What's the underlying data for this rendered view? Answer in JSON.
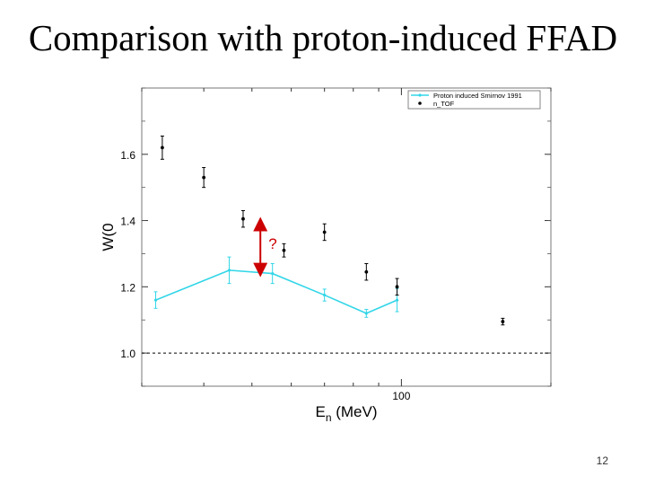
{
  "slide": {
    "title": "Comparison with proton-induced FFAD",
    "page_number": "12"
  },
  "colors": {
    "proton_series": "#33d6e8",
    "ntof_series": "#000000",
    "arrow": "#cc0000",
    "reference_line": "#000000"
  },
  "chart_data": {
    "type": "scatter",
    "x_scale": "log",
    "xlim": [
      30,
      200
    ],
    "ylim": [
      0.9,
      1.8
    ],
    "xlabel_main": "E",
    "xlabel_sub": "n",
    "xlabel_unit": " (MeV)",
    "ylabel": "W(0",
    "x_ticks": [
      {
        "value": 100,
        "label": "100"
      }
    ],
    "y_ticks": [
      {
        "value": 1.0,
        "label": "1.0"
      },
      {
        "value": 1.2,
        "label": "1.2"
      },
      {
        "value": 1.4,
        "label": "1.4"
      },
      {
        "value": 1.6,
        "label": "1.6"
      }
    ],
    "reference_y": 1.0,
    "legend": {
      "position": "top-right",
      "entries": [
        {
          "label": "Proton induced Smirnov 1991",
          "style": "line-marker"
        },
        {
          "label": "n_TOF",
          "style": "dot"
        }
      ]
    },
    "series": [
      {
        "name": "Proton induced Smirnov 1991",
        "style": "line",
        "points": [
          {
            "x": 32,
            "y": 1.16,
            "err": 0.025
          },
          {
            "x": 45,
            "y": 1.25,
            "err": 0.04
          },
          {
            "x": 55,
            "y": 1.24,
            "err": 0.03
          },
          {
            "x": 70,
            "y": 1.175,
            "err": 0.018
          },
          {
            "x": 85,
            "y": 1.12,
            "err": 0.012
          },
          {
            "x": 98,
            "y": 1.16,
            "err": 0.035
          }
        ]
      },
      {
        "name": "n_TOF",
        "style": "dot",
        "points": [
          {
            "x": 33,
            "y": 1.62,
            "err": 0.035
          },
          {
            "x": 40,
            "y": 1.53,
            "err": 0.03
          },
          {
            "x": 48,
            "y": 1.405,
            "err": 0.025
          },
          {
            "x": 58,
            "y": 1.31,
            "err": 0.02
          },
          {
            "x": 70,
            "y": 1.365,
            "err": 0.025
          },
          {
            "x": 85,
            "y": 1.245,
            "err": 0.025
          },
          {
            "x": 98,
            "y": 1.2,
            "err": 0.025
          },
          {
            "x": 160,
            "y": 1.095,
            "err": 0.01
          }
        ]
      }
    ],
    "annotation": {
      "label": "?",
      "x": 52,
      "y_from": 1.24,
      "y_to": 1.4
    }
  }
}
